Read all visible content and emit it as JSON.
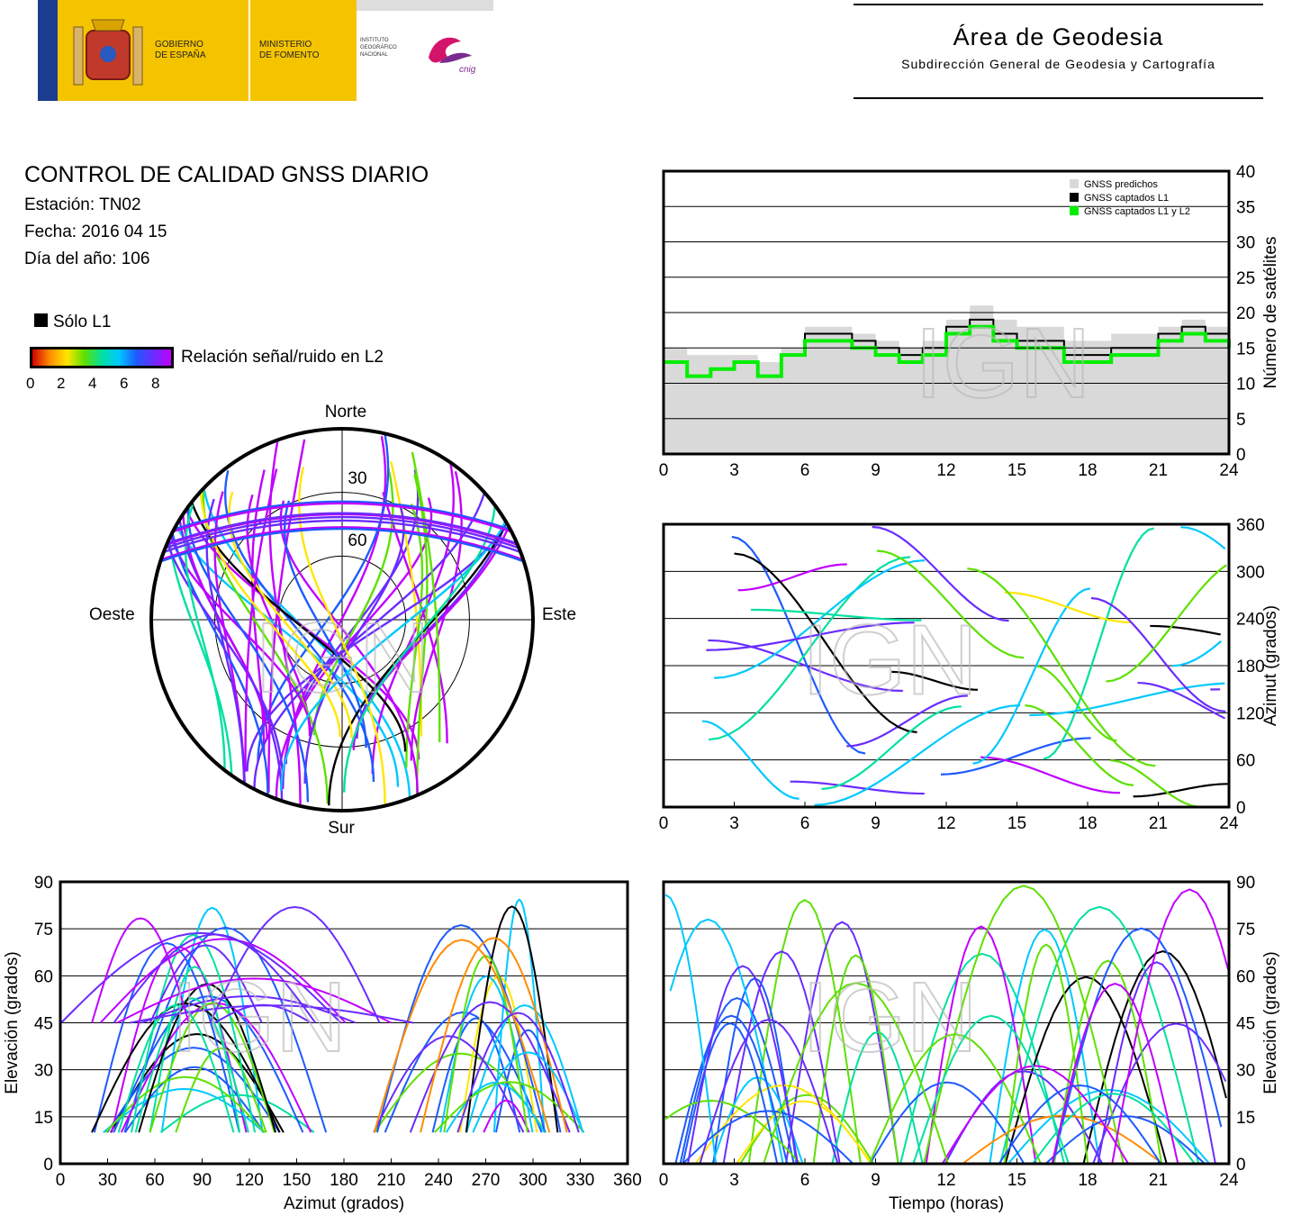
{
  "header": {
    "gov_label_1": "GOBIERNO",
    "gov_label_2": "DE ESPAÑA",
    "min_label_1": "MINISTERIO",
    "min_label_2": "DE FOMENTO",
    "ign_label_1": "INSTITUTO",
    "ign_label_2": "GEOGRÁFICO",
    "ign_label_3": "NACIONAL",
    "cnig_label": "cnig",
    "area_title": "Área de Geodesia",
    "area_subtitle": "Subdirección General de Geodesia y Cartografía"
  },
  "info": {
    "title": "CONTROL DE CALIDAD GNSS DIARIO",
    "station": "Estación: TN02",
    "date": "Fecha: 2016 04 15",
    "doy": "Día del año: 106"
  },
  "legend": {
    "l1_only": "Sólo L1",
    "snr_label": "Relación señal/ruido en L2",
    "snr_ticks": [
      "0",
      "2",
      "4",
      "6",
      "8"
    ]
  },
  "watermark": "IGN",
  "colors": {
    "predicted": "#d9d9d9",
    "l1": "#000000",
    "l1l2": "#00ee00",
    "snr_scale": [
      "#d10000",
      "#ff8c00",
      "#ffe600",
      "#5ee000",
      "#00e0a0",
      "#00c8ff",
      "#1e5aff",
      "#6a2cff",
      "#c000ff"
    ]
  },
  "chart_data": [
    {
      "type": "polar",
      "title": "",
      "directions": {
        "north": "Norte",
        "south": "Sur",
        "east": "Este",
        "west": "Oeste"
      },
      "rings": [
        "30",
        "60"
      ],
      "series_note": ""
    },
    {
      "type": "area",
      "ylabel": "Número de satélites",
      "xlabel": "",
      "xlim": [
        0,
        24
      ],
      "ylim": [
        0,
        40
      ],
      "xticks": [
        "0",
        "3",
        "6",
        "9",
        "12",
        "15",
        "18",
        "21",
        "24"
      ],
      "yticks": [
        "0",
        "5",
        "10",
        "15",
        "20",
        "25",
        "30",
        "35",
        "40"
      ],
      "legend_position": "top-right",
      "series": [
        {
          "name": "GNSS predichos",
          "x": [
            0,
            1,
            2,
            3,
            4,
            5,
            6,
            7,
            8,
            9,
            10,
            11,
            12,
            13,
            14,
            15,
            16,
            17,
            18,
            19,
            20,
            21,
            22,
            23,
            24
          ],
          "values": [
            15,
            14,
            14,
            14,
            13,
            15,
            18,
            18,
            17,
            16,
            15,
            16,
            19,
            21,
            19,
            18,
            18,
            16,
            16,
            17,
            17,
            18,
            19,
            18,
            17
          ]
        },
        {
          "name": "GNSS captados L1",
          "x": [
            0,
            1,
            2,
            3,
            4,
            5,
            6,
            7,
            8,
            9,
            10,
            11,
            12,
            13,
            14,
            15,
            16,
            17,
            18,
            19,
            20,
            21,
            22,
            23,
            24
          ],
          "values": [
            13,
            11,
            12,
            13,
            11,
            14,
            17,
            17,
            16,
            15,
            14,
            15,
            18,
            19,
            17,
            16,
            16,
            14,
            14,
            15,
            15,
            17,
            18,
            17,
            16
          ]
        },
        {
          "name": "GNSS captados L1 y L2",
          "x": [
            0,
            1,
            2,
            3,
            4,
            5,
            6,
            7,
            8,
            9,
            10,
            11,
            12,
            13,
            14,
            15,
            16,
            17,
            18,
            19,
            20,
            21,
            22,
            23,
            24
          ],
          "values": [
            13,
            11,
            12,
            13,
            11,
            14,
            16,
            16,
            15,
            14,
            13,
            14,
            17,
            18,
            16,
            15,
            15,
            13,
            13,
            14,
            14,
            16,
            17,
            16,
            15
          ]
        }
      ]
    },
    {
      "type": "scatter",
      "ylabel": "Azimut (grados)",
      "xlabel": "",
      "xlim": [
        0,
        24
      ],
      "ylim": [
        0,
        360
      ],
      "xticks": [
        "0",
        "3",
        "6",
        "9",
        "12",
        "15",
        "18",
        "21",
        "24"
      ],
      "yticks": [
        "0",
        "60",
        "120",
        "180",
        "240",
        "300",
        "360"
      ]
    },
    {
      "type": "scatter",
      "ylabel": "Elevación (grados)",
      "xlabel": "Azimut (grados)",
      "xlim": [
        0,
        360
      ],
      "ylim": [
        0,
        90
      ],
      "xticks": [
        "0",
        "30",
        "60",
        "90",
        "120",
        "150",
        "180",
        "210",
        "240",
        "270",
        "300",
        "330",
        "360"
      ],
      "yticks": [
        "0",
        "15",
        "30",
        "45",
        "60",
        "75",
        "90"
      ]
    },
    {
      "type": "line",
      "ylabel": "Elevación (grados)",
      "xlabel": "Tiempo (horas)",
      "xlim": [
        0,
        24
      ],
      "ylim": [
        0,
        90
      ],
      "xticks": [
        "0",
        "3",
        "6",
        "9",
        "12",
        "15",
        "18",
        "21",
        "24"
      ],
      "yticks": [
        "0",
        "15",
        "30",
        "45",
        "60",
        "75",
        "90"
      ]
    }
  ]
}
